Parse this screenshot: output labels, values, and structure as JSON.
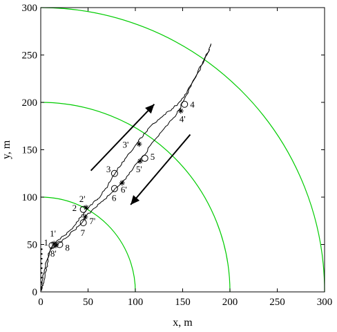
{
  "chart_data": {
    "type": "line",
    "title": "",
    "xlabel": "x, m",
    "ylabel": "y, m",
    "xlim": [
      0,
      300
    ],
    "ylim": [
      0,
      300
    ],
    "x_ticks": [
      0,
      50,
      100,
      150,
      200,
      250,
      300
    ],
    "y_ticks": [
      0,
      50,
      100,
      150,
      200,
      250,
      300
    ],
    "grid": false,
    "colors": {
      "arc": "#00cc00",
      "track": "#000000",
      "arrow": "#000000"
    },
    "range_arcs": [
      100,
      200,
      300
    ],
    "track_out": [
      [
        1,
        1
      ],
      [
        3,
        10
      ],
      [
        6,
        25
      ],
      [
        9,
        40
      ],
      [
        13,
        50
      ],
      [
        20,
        56
      ],
      [
        28,
        62
      ],
      [
        36,
        70
      ],
      [
        42,
        78
      ],
      [
        48,
        86
      ],
      [
        55,
        94
      ],
      [
        62,
        100
      ],
      [
        70,
        110
      ],
      [
        78,
        124
      ],
      [
        86,
        136
      ],
      [
        95,
        148
      ],
      [
        104,
        160
      ],
      [
        112,
        170
      ],
      [
        122,
        180
      ],
      [
        132,
        188
      ],
      [
        142,
        196
      ],
      [
        151,
        205
      ],
      [
        160,
        220
      ],
      [
        170,
        240
      ],
      [
        178,
        255
      ],
      [
        180,
        262
      ]
    ],
    "track_back": [
      [
        178,
        256
      ],
      [
        170,
        238
      ],
      [
        160,
        220
      ],
      [
        150,
        200
      ],
      [
        142,
        186
      ],
      [
        132,
        174
      ],
      [
        120,
        160
      ],
      [
        108,
        143
      ],
      [
        96,
        128
      ],
      [
        86,
        116
      ],
      [
        76,
        106
      ],
      [
        66,
        96
      ],
      [
        56,
        88
      ],
      [
        48,
        80
      ],
      [
        42,
        72
      ],
      [
        34,
        64
      ],
      [
        26,
        56
      ],
      [
        18,
        50
      ],
      [
        10,
        45
      ],
      [
        5,
        30
      ],
      [
        2,
        15
      ],
      [
        1,
        2
      ]
    ],
    "circle_points": [
      {
        "label": "1",
        "x": 12,
        "y": 49
      },
      {
        "label": "2",
        "x": 45,
        "y": 87
      },
      {
        "label": "3",
        "x": 78,
        "y": 125
      },
      {
        "label": "4",
        "x": 152,
        "y": 198
      },
      {
        "label": "5",
        "x": 110,
        "y": 141
      },
      {
        "label": "6",
        "x": 78,
        "y": 109
      },
      {
        "label": "7",
        "x": 45,
        "y": 73
      },
      {
        "label": "8",
        "x": 20,
        "y": 50
      }
    ],
    "star_points": [
      {
        "label": "1'",
        "x": 14,
        "y": 51
      },
      {
        "label": "2'",
        "x": 48,
        "y": 89
      },
      {
        "label": "3'",
        "x": 104,
        "y": 156
      },
      {
        "label": "4'",
        "x": 148,
        "y": 191
      },
      {
        "label": "5'",
        "x": 105,
        "y": 138
      },
      {
        "label": "6'",
        "x": 86,
        "y": 115
      },
      {
        "label": "7'",
        "x": 47,
        "y": 79
      },
      {
        "label": "8'",
        "x": 16,
        "y": 49
      }
    ],
    "arrows": [
      {
        "from": [
          53,
          128
        ],
        "to": [
          120,
          198
        ]
      },
      {
        "from": [
          158,
          166
        ],
        "to": [
          95,
          92
        ]
      }
    ],
    "start_dots": [
      [
        1,
        5
      ],
      [
        1,
        10
      ],
      [
        1,
        15
      ],
      [
        1,
        20
      ],
      [
        1,
        25
      ],
      [
        1,
        30
      ],
      [
        1,
        35
      ],
      [
        1,
        40
      ],
      [
        1,
        45
      ]
    ]
  }
}
